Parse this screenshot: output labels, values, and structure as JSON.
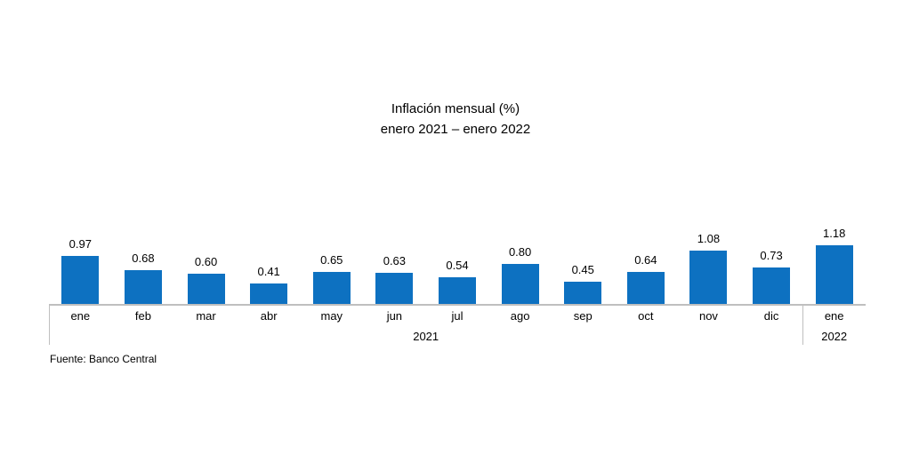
{
  "title": {
    "line1": "Inflación mensual (%)",
    "line2": "enero 2021 – enero 2022"
  },
  "source": "Fuente: Banco Central",
  "colors": {
    "bar": "#0d71c1",
    "axis": "#bfbfbf",
    "text": "#000000",
    "background": "#ffffff"
  },
  "chart_data": {
    "type": "bar",
    "title": "Inflación mensual (%)",
    "subtitle": "enero 2021 – enero 2022",
    "categories": [
      "ene",
      "feb",
      "mar",
      "abr",
      "may",
      "jun",
      "jul",
      "ago",
      "sep",
      "oct",
      "nov",
      "dic",
      "ene"
    ],
    "values": [
      0.97,
      0.68,
      0.6,
      0.41,
      0.65,
      0.63,
      0.54,
      0.8,
      0.45,
      0.64,
      1.08,
      0.73,
      1.18
    ],
    "value_labels": [
      "0.97",
      "0.68",
      "0.60",
      "0.41",
      "0.65",
      "0.63",
      "0.54",
      "0.80",
      "0.45",
      "0.64",
      "1.08",
      "0.73",
      "1.18"
    ],
    "year_groups": [
      {
        "label": "2021",
        "start_index": 0,
        "end_index": 11
      },
      {
        "label": "2022",
        "start_index": 12,
        "end_index": 12
      }
    ],
    "xlabel": "",
    "ylabel": "",
    "ylim": [
      0,
      1.25
    ],
    "grid": false,
    "legend": "none",
    "data_labels": true,
    "source": "Fuente: Banco Central"
  }
}
